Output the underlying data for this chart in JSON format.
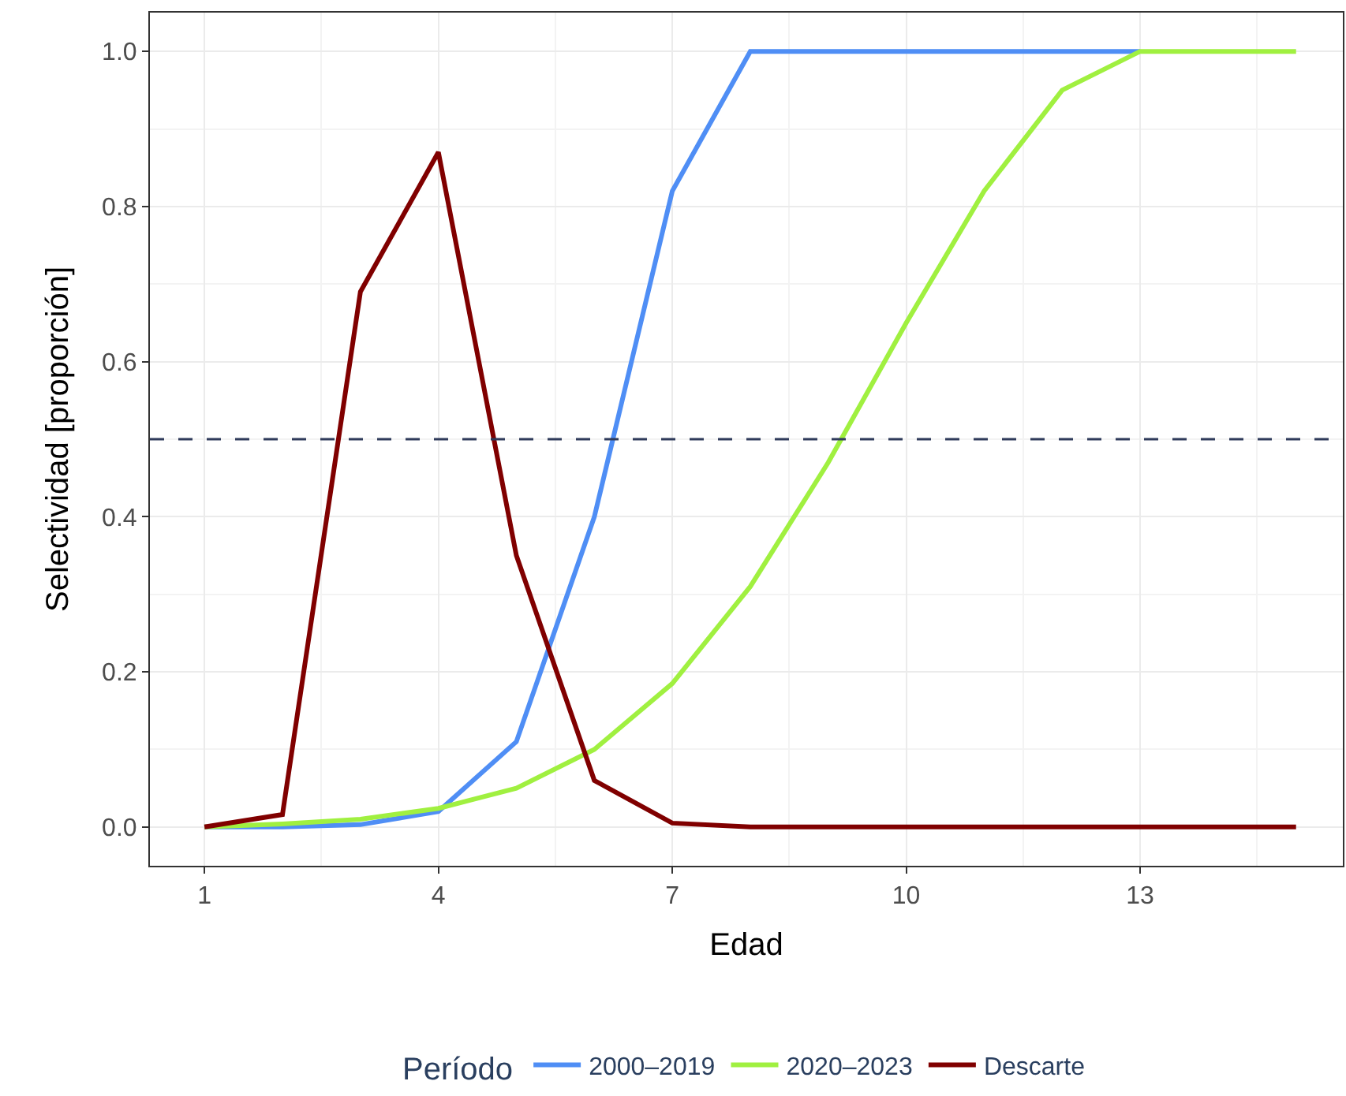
{
  "chart_data": {
    "type": "line",
    "xlabel": "Edad",
    "ylabel": "Selectividad [proporción]",
    "legend_title": "Período",
    "x": [
      1,
      2,
      3,
      4,
      5,
      6,
      7,
      8,
      9,
      10,
      11,
      12,
      13,
      14,
      15
    ],
    "series": [
      {
        "name": "2000–2019",
        "color": "#4f8ef5",
        "values": [
          0,
          0,
          0.003,
          0.02,
          0.11,
          0.4,
          0.82,
          1,
          1,
          1,
          1,
          1,
          1,
          null,
          null
        ]
      },
      {
        "name": "2020–2023",
        "color": "#a0f040",
        "values": [
          0,
          0.004,
          0.01,
          0.024,
          0.05,
          0.1,
          0.185,
          0.31,
          0.47,
          0.65,
          0.82,
          0.95,
          1,
          1,
          1
        ]
      },
      {
        "name": "Descarte",
        "color": "#800000",
        "values": [
          0,
          0.016,
          0.69,
          0.87,
          0.35,
          0.06,
          0.005,
          0,
          0,
          0,
          0,
          0,
          0,
          0,
          0
        ]
      }
    ],
    "xlim": [
      0.3,
      15.6
    ],
    "xticks": [
      1,
      4,
      7,
      10,
      13
    ],
    "ylim": [
      -0.05,
      1.05
    ],
    "yticks": [
      {
        "value": 0,
        "label": "0.0"
      },
      {
        "value": 0.2,
        "label": "0.2"
      },
      {
        "value": 0.4,
        "label": "0.4"
      },
      {
        "value": 0.6,
        "label": "0.6"
      },
      {
        "value": 0.8,
        "label": "0.8"
      },
      {
        "value": 1,
        "label": "1.0"
      }
    ],
    "ref_lines": [
      {
        "axis": "y",
        "value": 0.5,
        "color": "#2f3a5a",
        "line_style": "dashed"
      }
    ],
    "grid": true,
    "legend": "bottom",
    "line_style": "solid",
    "marker": "none"
  }
}
